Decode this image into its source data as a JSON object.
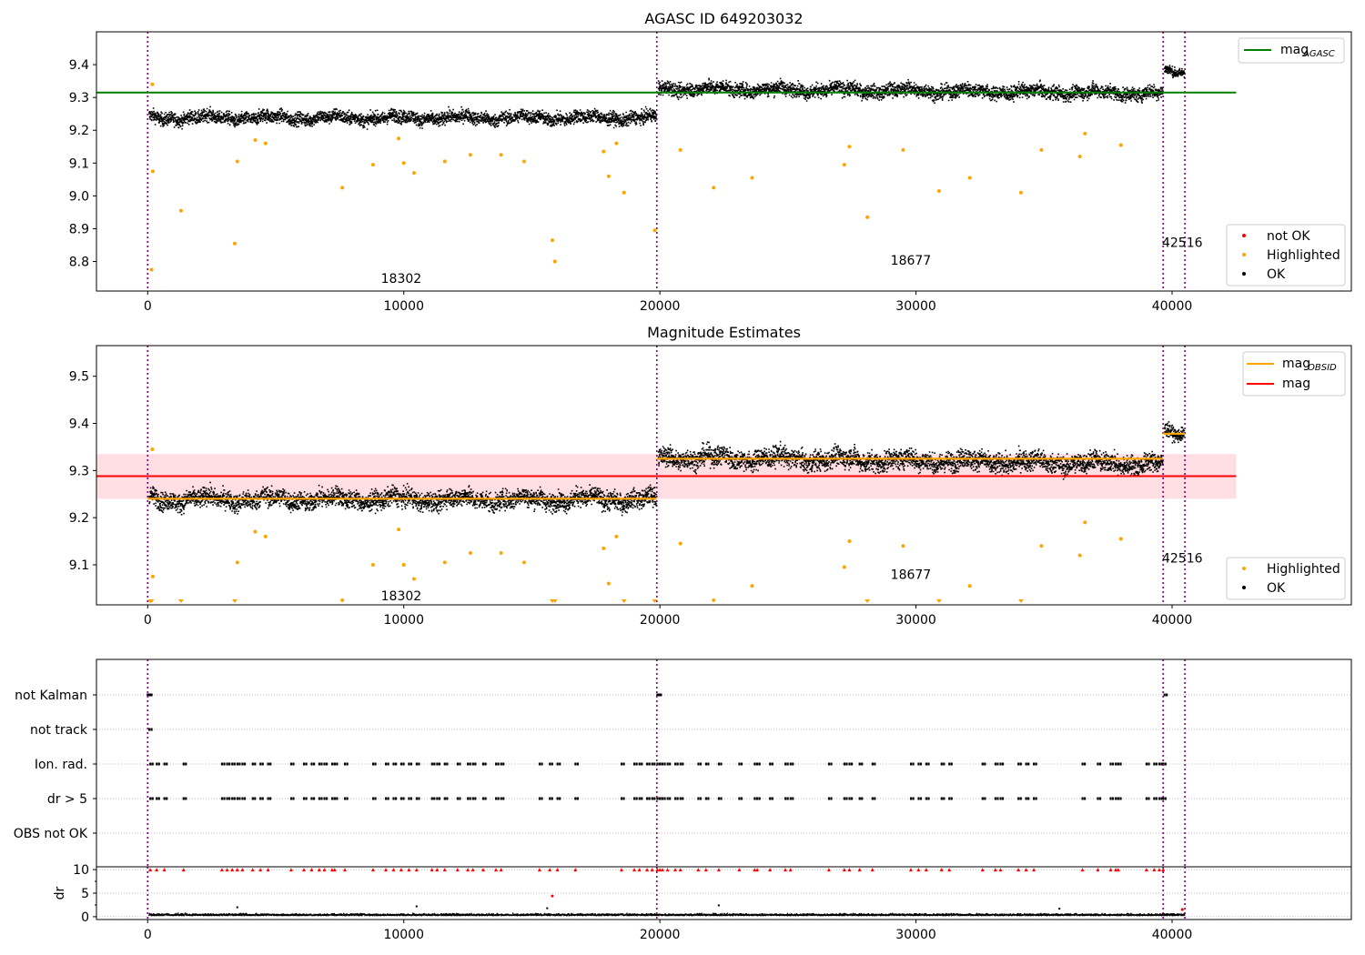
{
  "chart_data": [
    {
      "type": "scatter",
      "title": "AGASC ID 649203032",
      "xlim": [
        -2000,
        47000
      ],
      "ylim": [
        8.71,
        9.5
      ],
      "xticks": [
        0,
        10000,
        20000,
        30000,
        40000
      ],
      "yticks": [
        8.8,
        8.9,
        9.0,
        9.1,
        9.2,
        9.3,
        9.4
      ],
      "ytick_labels": [
        "8.8",
        "8.9",
        "9.0",
        "9.1",
        "9.2",
        "9.3",
        "9.4"
      ],
      "obs_boundaries": [
        0,
        19880,
        39650,
        40500
      ],
      "obs_labels": [
        {
          "text": "18302",
          "x": 9900,
          "y": 8.735
        },
        {
          "text": "18677",
          "x": 29800,
          "y": 8.79
        },
        {
          "text": "42516",
          "x": 40400,
          "y": 8.845
        }
      ],
      "lines": [
        {
          "name": "mag_AGASC",
          "label_main": "mag",
          "label_sub": "AGASC",
          "y": 9.315,
          "x": [
            -2000,
            42500
          ],
          "color": "#008000"
        }
      ],
      "segments": [
        {
          "x": [
            0,
            19880
          ],
          "center": 9.24,
          "spread": 0.028
        },
        {
          "x": [
            19880,
            39650
          ],
          "center": 9.33,
          "end_center": 9.315,
          "spread": 0.03
        },
        {
          "x": [
            39650,
            40500
          ],
          "center": 9.38,
          "spread": 0.02
        }
      ],
      "highlighted": [
        {
          "x": 150,
          "y": 8.775
        },
        {
          "x": 180,
          "y": 9.34
        },
        {
          "x": 200,
          "y": 9.075
        },
        {
          "x": 1300,
          "y": 8.955
        },
        {
          "x": 3400,
          "y": 8.855
        },
        {
          "x": 3500,
          "y": 9.105
        },
        {
          "x": 4200,
          "y": 9.17
        },
        {
          "x": 4600,
          "y": 9.16
        },
        {
          "x": 7600,
          "y": 9.025
        },
        {
          "x": 8800,
          "y": 9.095
        },
        {
          "x": 9800,
          "y": 9.175
        },
        {
          "x": 10000,
          "y": 9.1
        },
        {
          "x": 10400,
          "y": 9.07
        },
        {
          "x": 11600,
          "y": 9.105
        },
        {
          "x": 12600,
          "y": 9.125
        },
        {
          "x": 13800,
          "y": 9.125
        },
        {
          "x": 14700,
          "y": 9.105
        },
        {
          "x": 15800,
          "y": 8.865
        },
        {
          "x": 15900,
          "y": 8.8
        },
        {
          "x": 17800,
          "y": 9.135
        },
        {
          "x": 18000,
          "y": 9.06
        },
        {
          "x": 18300,
          "y": 9.16
        },
        {
          "x": 18600,
          "y": 9.01
        },
        {
          "x": 19800,
          "y": 8.895
        },
        {
          "x": 20800,
          "y": 9.14
        },
        {
          "x": 22100,
          "y": 9.025
        },
        {
          "x": 23600,
          "y": 9.055
        },
        {
          "x": 27200,
          "y": 9.095
        },
        {
          "x": 27400,
          "y": 9.15
        },
        {
          "x": 28100,
          "y": 8.935
        },
        {
          "x": 29500,
          "y": 9.14
        },
        {
          "x": 30900,
          "y": 9.015
        },
        {
          "x": 32100,
          "y": 9.055
        },
        {
          "x": 34100,
          "y": 9.01
        },
        {
          "x": 34900,
          "y": 9.14
        },
        {
          "x": 36400,
          "y": 9.12
        },
        {
          "x": 36600,
          "y": 9.19
        },
        {
          "x": 38000,
          "y": 9.155
        }
      ],
      "legend_lines": [
        {
          "label_main": "mag",
          "label_sub": "AGASC",
          "color": "#008000"
        }
      ],
      "legend_points": [
        {
          "label": "not OK",
          "color": "#ff0000"
        },
        {
          "label": "Highlighted",
          "color": "#ffa500"
        },
        {
          "label": "OK",
          "color": "#000000"
        }
      ]
    },
    {
      "type": "scatter",
      "title": "Magnitude Estimates",
      "xlim": [
        -2000,
        47000
      ],
      "ylim": [
        9.015,
        9.565
      ],
      "xticks": [
        0,
        10000,
        20000,
        30000,
        40000
      ],
      "yticks": [
        9.1,
        9.2,
        9.3,
        9.4,
        9.5
      ],
      "ytick_labels": [
        "9.1",
        "9.2",
        "9.3",
        "9.4",
        "9.5"
      ],
      "obs_boundaries": [
        0,
        19880,
        39650,
        40500
      ],
      "obs_labels": [
        {
          "text": "18302",
          "x": 9900,
          "y": 9.025
        },
        {
          "text": "18677",
          "x": 29800,
          "y": 9.07
        },
        {
          "text": "42516",
          "x": 40400,
          "y": 9.105
        }
      ],
      "band": {
        "y": [
          9.24,
          9.335
        ],
        "x": [
          -2000,
          42500
        ],
        "color": "#ffc0c8"
      },
      "lines": [
        {
          "name": "mag",
          "y": 9.288,
          "x": [
            -2000,
            42500
          ],
          "color": "#ff0000"
        }
      ],
      "segment_means": [
        {
          "x": [
            0,
            19880
          ],
          "y": 9.24
        },
        {
          "x": [
            19880,
            39650
          ],
          "y": 9.325
        },
        {
          "x": [
            39650,
            40500
          ],
          "y": 9.378
        }
      ],
      "segments": [
        {
          "x": [
            0,
            19880
          ],
          "center": 9.24,
          "spread": 0.028
        },
        {
          "x": [
            19880,
            39650
          ],
          "center": 9.33,
          "end_center": 9.315,
          "spread": 0.03
        },
        {
          "x": [
            39650,
            40500
          ],
          "center": 9.38,
          "spread": 0.02
        }
      ],
      "highlighted": [
        {
          "x": 180,
          "y": 9.345
        },
        {
          "x": 200,
          "y": 9.075
        },
        {
          "x": 3500,
          "y": 9.105
        },
        {
          "x": 4200,
          "y": 9.17
        },
        {
          "x": 4600,
          "y": 9.16
        },
        {
          "x": 7600,
          "y": 9.025
        },
        {
          "x": 8800,
          "y": 9.1
        },
        {
          "x": 9800,
          "y": 9.175
        },
        {
          "x": 10000,
          "y": 9.1
        },
        {
          "x": 10400,
          "y": 9.07
        },
        {
          "x": 11600,
          "y": 9.105
        },
        {
          "x": 12600,
          "y": 9.125
        },
        {
          "x": 13800,
          "y": 9.125
        },
        {
          "x": 14700,
          "y": 9.105
        },
        {
          "x": 17800,
          "y": 9.135
        },
        {
          "x": 18000,
          "y": 9.06
        },
        {
          "x": 18300,
          "y": 9.16
        },
        {
          "x": 20800,
          "y": 9.145
        },
        {
          "x": 22100,
          "y": 9.025
        },
        {
          "x": 23600,
          "y": 9.055
        },
        {
          "x": 27200,
          "y": 9.095
        },
        {
          "x": 27400,
          "y": 9.15
        },
        {
          "x": 29500,
          "y": 9.14
        },
        {
          "x": 32100,
          "y": 9.055
        },
        {
          "x": 34900,
          "y": 9.14
        },
        {
          "x": 36400,
          "y": 9.12
        },
        {
          "x": 36600,
          "y": 9.19
        },
        {
          "x": 38000,
          "y": 9.155
        }
      ],
      "out_of_range_low": [
        100,
        150,
        1300,
        3400,
        15800,
        15900,
        18600,
        19800,
        28100,
        30900,
        34100
      ],
      "legend_lines": [
        {
          "label_main": "mag",
          "label_sub": "OBSID",
          "color": "#ffa500"
        },
        {
          "label_main": "mag",
          "label_sub": "",
          "color": "#ff0000"
        }
      ],
      "legend_points": [
        {
          "label": "Highlighted",
          "color": "#ffa500"
        },
        {
          "label": "OK",
          "color": "#000000"
        }
      ]
    },
    {
      "type": "scatter",
      "title": "",
      "xlim": [
        -2000,
        47000
      ],
      "categories": [
        "not Kalman",
        "not track",
        "Ion. rad.",
        "dr > 5",
        "OBS not OK"
      ],
      "obs_boundaries": [
        0,
        19880,
        39650,
        40500
      ],
      "flags": {
        "not Kalman": [
          0,
          60,
          19900,
          19950,
          39700
        ],
        "not track": [
          60
        ],
        "Ion. rad.": [
          100,
          350,
          650,
          1400,
          2900,
          3100,
          3300,
          3500,
          3700,
          4100,
          4400,
          4700,
          5600,
          6100,
          6400,
          6700,
          6900,
          7200,
          7300,
          7700,
          8800,
          9300,
          9600,
          9900,
          10200,
          10500,
          11100,
          11300,
          11600,
          12100,
          12500,
          12700,
          13100,
          13600,
          13800,
          15300,
          15700,
          16000,
          16700,
          18500,
          19000,
          19200,
          19500,
          19700,
          19900,
          20000,
          20100,
          20300,
          20600,
          20800,
          21500,
          21800,
          22300,
          23100,
          23700,
          23800,
          24300,
          24900,
          25100,
          26600,
          27200,
          27400,
          27800,
          28300,
          29800,
          30100,
          30400,
          31000,
          31300,
          32600,
          33100,
          33300,
          34000,
          34300,
          34600,
          36500,
          37100,
          37600,
          37800,
          37900,
          39000,
          39300,
          39500,
          39650
        ],
        "dr > 5": [
          100,
          350,
          650,
          1400,
          2900,
          3100,
          3300,
          3500,
          3700,
          4100,
          4400,
          4700,
          5600,
          6100,
          6400,
          6700,
          6900,
          7200,
          7300,
          7700,
          8800,
          9300,
          9600,
          9900,
          10200,
          10500,
          11100,
          11300,
          11600,
          12100,
          12500,
          12700,
          13100,
          13600,
          13800,
          15300,
          15700,
          16000,
          16700,
          18500,
          19000,
          19200,
          19500,
          19700,
          19900,
          20000,
          20100,
          20300,
          20600,
          20800,
          21500,
          21800,
          22300,
          23100,
          23700,
          23800,
          24300,
          24900,
          25100,
          26600,
          27200,
          27400,
          27800,
          28300,
          29800,
          30100,
          30400,
          31000,
          31300,
          32600,
          33100,
          33300,
          34000,
          34300,
          34600,
          36500,
          37100,
          37600,
          37800,
          37900,
          39000,
          39300,
          39500,
          39650
        ],
        "OBS not OK": []
      }
    },
    {
      "type": "scatter",
      "title": "",
      "ylabel": "dr",
      "xlim": [
        -2000,
        47000
      ],
      "ylim": [
        -0.6,
        10.6
      ],
      "xticks": [
        0,
        10000,
        20000,
        30000,
        40000
      ],
      "yticks": [
        0,
        5,
        10
      ],
      "ytick_labels": [
        "0",
        "5",
        "10"
      ],
      "obs_boundaries": [
        0,
        19880,
        39650,
        40500
      ],
      "baseline": {
        "mean": 0.6,
        "spread": 0.35
      },
      "outliers": [
        {
          "x": 3500,
          "y": 2.0
        },
        {
          "x": 10500,
          "y": 2.2
        },
        {
          "x": 15600,
          "y": 1.8
        },
        {
          "x": 22300,
          "y": 2.4
        },
        {
          "x": 35600,
          "y": 1.7
        },
        {
          "x": 40400,
          "y": 1.6
        }
      ],
      "clipped_at_10": [
        100,
        350,
        650,
        1400,
        2900,
        3100,
        3300,
        3500,
        3700,
        4100,
        4400,
        4700,
        5600,
        6100,
        6400,
        6700,
        6900,
        7200,
        7300,
        7700,
        8800,
        9300,
        9600,
        9900,
        10200,
        10500,
        11100,
        11300,
        11600,
        12100,
        12500,
        12700,
        13100,
        13600,
        13800,
        15300,
        15700,
        16000,
        16700,
        18500,
        19000,
        19200,
        19500,
        19700,
        19900,
        20000,
        20100,
        20300,
        20600,
        20800,
        21500,
        21800,
        22300,
        23100,
        23700,
        23800,
        24300,
        24900,
        25100,
        26600,
        27200,
        27400,
        27800,
        28300,
        29800,
        30100,
        30400,
        31000,
        31300,
        32600,
        33100,
        33300,
        34000,
        34300,
        34600,
        36500,
        37100,
        37600,
        37800,
        37900,
        39000,
        39300,
        39500,
        39650
      ],
      "red_points": [
        {
          "x": 15800,
          "y": 4.4
        },
        {
          "x": 40400,
          "y": 1.5
        }
      ]
    }
  ]
}
